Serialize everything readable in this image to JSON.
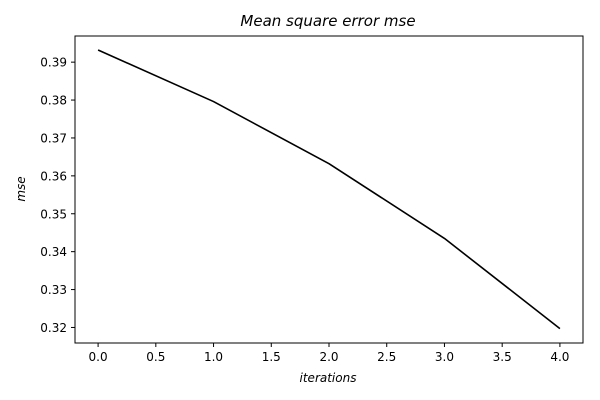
{
  "chart_data": {
    "type": "line",
    "title": "Mean square error mse",
    "xlabel": "iterations",
    "ylabel": "mse",
    "x": [
      0,
      1,
      2,
      3,
      4
    ],
    "series": [
      {
        "values": [
          0.3932,
          0.3796,
          0.3632,
          0.3435,
          0.3197
        ],
        "color": "#000000"
      }
    ],
    "xlim": [
      -0.2,
      4.2
    ],
    "ylim": [
      0.3159,
      0.3969
    ],
    "xticks": [
      0.0,
      0.5,
      1.0,
      1.5,
      2.0,
      2.5,
      3.0,
      3.5,
      4.0
    ],
    "xtick_labels": [
      "0.0",
      "0.5",
      "1.0",
      "1.5",
      "2.0",
      "2.5",
      "3.0",
      "3.5",
      "4.0"
    ],
    "yticks": [
      0.32,
      0.33,
      0.34,
      0.35,
      0.36,
      0.37,
      0.38,
      0.39
    ],
    "ytick_labels": [
      "0.32",
      "0.33",
      "0.34",
      "0.35",
      "0.36",
      "0.37",
      "0.38",
      "0.39"
    ],
    "grid": false,
    "legend": "none"
  }
}
